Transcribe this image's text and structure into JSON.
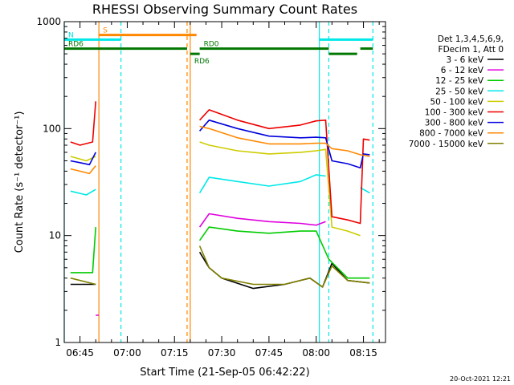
{
  "chart_data": {
    "type": "line",
    "title": "RHESSI Observing Summary Count Rates",
    "ylabel": "Count Rate (s⁻¹ detector⁻¹)",
    "xlabel": "Start Time (21-Sep-05 06:42:22)",
    "y_scale": "log",
    "ylim": [
      1,
      1000
    ],
    "y_ticks": [
      {
        "value": 1,
        "label": "1"
      },
      {
        "value": 10,
        "label": "10"
      },
      {
        "value": 100,
        "label": "100"
      },
      {
        "value": 1000,
        "label": "1000"
      }
    ],
    "xlim": [
      "06:40",
      "08:22"
    ],
    "x_ticks": [
      "06:45",
      "07:00",
      "07:15",
      "07:30",
      "07:45",
      "08:00",
      "08:15"
    ],
    "legend": {
      "header": [
        "Det 1,3,4,5,6,9,",
        "FDecim 1, Att 0"
      ],
      "placement": "right"
    },
    "series": [
      {
        "name": "3 - 6 keV",
        "color": "#000000",
        "points": [
          [
            "06:42",
            3.5
          ],
          [
            "06:50",
            3.5
          ],
          [
            "06:50",
            null
          ],
          [
            "07:23",
            7
          ],
          [
            "07:26",
            5
          ],
          [
            "07:30",
            4
          ],
          [
            "07:40",
            3.2
          ],
          [
            "07:50",
            3.5
          ],
          [
            "07:58",
            4
          ],
          [
            "08:02",
            3.3
          ],
          [
            "08:05",
            5.5
          ],
          [
            "08:10",
            3.8
          ],
          [
            "08:17",
            3.6
          ]
        ]
      },
      {
        "name": "6 - 12 keV",
        "color": "#e000e0",
        "points": [
          [
            "06:50",
            1.8
          ],
          [
            "06:51",
            1.8
          ],
          [
            "06:51",
            null
          ],
          [
            "07:23",
            12
          ],
          [
            "07:26",
            16
          ],
          [
            "07:35",
            14.5
          ],
          [
            "07:45",
            13.5
          ],
          [
            "07:55",
            13
          ],
          [
            "08:00",
            12.5
          ],
          [
            "08:03",
            13.5
          ]
        ]
      },
      {
        "name": "12 - 25 keV",
        "color": "#00cc00",
        "points": [
          [
            "06:42",
            4.5
          ],
          [
            "06:49",
            4.5
          ],
          [
            "06:50",
            12
          ],
          [
            "06:50",
            null
          ],
          [
            "07:23",
            9
          ],
          [
            "07:26",
            12
          ],
          [
            "07:35",
            11
          ],
          [
            "07:45",
            10.5
          ],
          [
            "07:55",
            11
          ],
          [
            "08:00",
            11
          ],
          [
            "08:04",
            6
          ],
          [
            "08:10",
            4
          ],
          [
            "08:17",
            4
          ]
        ]
      },
      {
        "name": "25 - 50 keV",
        "color": "#00e8e8",
        "points": [
          [
            "06:42",
            26
          ],
          [
            "06:47",
            24
          ],
          [
            "06:50",
            27
          ],
          [
            "06:50",
            null
          ],
          [
            "07:23",
            25
          ],
          [
            "07:26",
            35
          ],
          [
            "07:35",
            32
          ],
          [
            "07:45",
            29
          ],
          [
            "07:55",
            32
          ],
          [
            "08:00",
            37
          ],
          [
            "08:03",
            36
          ],
          [
            "08:04",
            null
          ],
          [
            "08:14",
            28
          ],
          [
            "08:17",
            25
          ]
        ]
      },
      {
        "name": "50 - 100 keV",
        "color": "#cccc00",
        "points": [
          [
            "06:42",
            55
          ],
          [
            "06:47",
            50
          ],
          [
            "06:50",
            55
          ],
          [
            "06:50",
            null
          ],
          [
            "07:23",
            75
          ],
          [
            "07:26",
            70
          ],
          [
            "07:35",
            62
          ],
          [
            "07:45",
            58
          ],
          [
            "07:55",
            60
          ],
          [
            "08:00",
            62
          ],
          [
            "08:03",
            64
          ],
          [
            "08:05",
            12
          ],
          [
            "08:10",
            11
          ],
          [
            "08:14",
            10
          ],
          [
            "08:15",
            null
          ]
        ]
      },
      {
        "name": "100 - 300 keV",
        "color": "#ee0000",
        "points": [
          [
            "06:42",
            75
          ],
          [
            "06:45",
            70
          ],
          [
            "06:49",
            75
          ],
          [
            "06:50",
            180
          ],
          [
            "06:50",
            null
          ],
          [
            "07:23",
            120
          ],
          [
            "07:26",
            150
          ],
          [
            "07:35",
            120
          ],
          [
            "07:45",
            100
          ],
          [
            "07:55",
            108
          ],
          [
            "08:00",
            118
          ],
          [
            "08:03",
            120
          ],
          [
            "08:05",
            15
          ],
          [
            "08:10",
            14
          ],
          [
            "08:14",
            13
          ],
          [
            "08:15",
            80
          ],
          [
            "08:17",
            78
          ]
        ]
      },
      {
        "name": "300 - 800 keV",
        "color": "#0000dd",
        "points": [
          [
            "06:42",
            50
          ],
          [
            "06:45",
            48
          ],
          [
            "06:48",
            46
          ],
          [
            "06:50",
            60
          ],
          [
            "06:50",
            null
          ],
          [
            "07:23",
            95
          ],
          [
            "07:26",
            120
          ],
          [
            "07:35",
            100
          ],
          [
            "07:45",
            85
          ],
          [
            "07:55",
            82
          ],
          [
            "08:00",
            83
          ],
          [
            "08:03",
            82
          ],
          [
            "08:05",
            50
          ],
          [
            "08:10",
            47
          ],
          [
            "08:14",
            43
          ],
          [
            "08:15",
            58
          ],
          [
            "08:17",
            57
          ]
        ]
      },
      {
        "name": "800 - 7000 keV",
        "color": "#ff8800",
        "points": [
          [
            "06:42",
            42
          ],
          [
            "06:45",
            40
          ],
          [
            "06:48",
            38
          ],
          [
            "06:50",
            45
          ],
          [
            "06:50",
            null
          ],
          [
            "07:23",
            105
          ],
          [
            "07:26",
            100
          ],
          [
            "07:35",
            82
          ],
          [
            "07:45",
            72
          ],
          [
            "07:55",
            72
          ],
          [
            "08:00",
            73
          ],
          [
            "08:03",
            73
          ],
          [
            "08:05",
            65
          ],
          [
            "08:10",
            62
          ],
          [
            "08:14",
            57
          ],
          [
            "08:17",
            55
          ]
        ]
      },
      {
        "name": "7000 - 15000 keV",
        "color": "#808000",
        "points": [
          [
            "06:42",
            4
          ],
          [
            "06:50",
            3.5
          ],
          [
            "06:50",
            null
          ],
          [
            "07:23",
            8
          ],
          [
            "07:26",
            5
          ],
          [
            "07:30",
            4
          ],
          [
            "07:40",
            3.5
          ],
          [
            "07:50",
            3.5
          ],
          [
            "07:58",
            4
          ],
          [
            "08:02",
            3.3
          ],
          [
            "08:05",
            5.2
          ],
          [
            "08:10",
            3.8
          ],
          [
            "08:17",
            3.6
          ]
        ]
      }
    ],
    "markers": [
      {
        "label": "S",
        "color": "#ff8800",
        "y_value": 750,
        "start": "06:51",
        "end": "07:22"
      },
      {
        "label": "N",
        "color": "#00e8e8",
        "y_value": 680,
        "start": "06:40",
        "end": "06:58"
      },
      {
        "label": "",
        "color": "#00e8e8",
        "y_value": 680,
        "start": "08:01",
        "end": "08:18"
      },
      {
        "label": "RD6",
        "color": "#007700",
        "y_value": 560,
        "start": "06:40",
        "end": "07:19"
      },
      {
        "label": "RD6",
        "color": "#007700",
        "y_value": 500,
        "start": "07:20",
        "end": "07:23"
      },
      {
        "label": "RD0",
        "color": "#007700",
        "y_value": 560,
        "start": "07:23",
        "end": "08:04"
      },
      {
        "label": "",
        "color": "#007700",
        "y_value": 500,
        "start": "08:04",
        "end": "08:13"
      },
      {
        "label": "",
        "color": "#007700",
        "y_value": 560,
        "start": "08:14",
        "end": "08:18"
      }
    ],
    "vlines": [
      {
        "time": "06:40",
        "color": "#00e8e8",
        "style": "solid"
      },
      {
        "time": "06:51",
        "color": "#ff8800",
        "style": "solid"
      },
      {
        "time": "06:58",
        "color": "#00e8e8",
        "style": "dashed"
      },
      {
        "time": "07:19",
        "color": "#ff8800",
        "style": "dashed"
      },
      {
        "time": "07:20",
        "color": "#ff8800",
        "style": "solid"
      },
      {
        "time": "08:01",
        "color": "#00e8e8",
        "style": "solid"
      },
      {
        "time": "08:04",
        "color": "#00e8e8",
        "style": "dashed"
      },
      {
        "time": "08:18",
        "color": "#00e8e8",
        "style": "dashed"
      }
    ]
  },
  "footer": {
    "timestamp": "20-Oct-2021 12:21"
  }
}
